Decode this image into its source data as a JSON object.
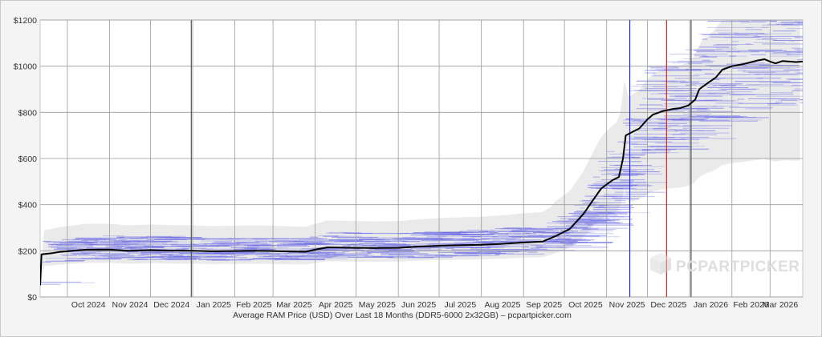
{
  "chart_data": {
    "type": "line",
    "xlabel": "Average RAM Price (USD) Over Last 18 Months (DDR5-6000 2x32GB) – pcpartpicker.com",
    "ylabel": "",
    "ylim": [
      0,
      1200
    ],
    "y_ticks": [
      0,
      200,
      400,
      600,
      800,
      1000,
      1200
    ],
    "y_tick_labels": [
      "$0",
      "$200",
      "$400",
      "$600",
      "$800",
      "$1000",
      "$1200"
    ],
    "x_ticks": [
      {
        "label": "Oct 2024",
        "date": "2024-10-01"
      },
      {
        "label": "Nov 2024",
        "date": "2024-11-01"
      },
      {
        "label": "Dec 2024",
        "date": "2024-12-01"
      },
      {
        "label": "Jan 2025",
        "date": "2025-01-01"
      },
      {
        "label": "Feb 2025",
        "date": "2025-02-01"
      },
      {
        "label": "Mar 2025",
        "date": "2025-03-01"
      },
      {
        "label": "Apr 2025",
        "date": "2025-04-01"
      },
      {
        "label": "May 2025",
        "date": "2025-05-01"
      },
      {
        "label": "Jun 2025",
        "date": "2025-06-01"
      },
      {
        "label": "Jul 2025",
        "date": "2025-07-01"
      },
      {
        "label": "Aug 2025",
        "date": "2025-08-01"
      },
      {
        "label": "Sep 2025",
        "date": "2025-09-01"
      },
      {
        "label": "Oct 2025",
        "date": "2025-10-01"
      },
      {
        "label": "Nov 2025",
        "date": "2025-11-01"
      },
      {
        "label": "Dec 2025",
        "date": "2025-12-01"
      },
      {
        "label": "Jan 2026",
        "date": "2026-01-01"
      },
      {
        "label": "Feb 2026",
        "date": "2026-02-01"
      },
      {
        "label": "Mar 2026",
        "date": "2026-03-01"
      }
    ],
    "xlim": [
      "2024-09-11",
      "2026-03-25"
    ],
    "grid": true,
    "series": [
      {
        "name": "",
        "color": "#000000",
        "points": [
          [
            "2024-09-11",
            50
          ],
          [
            "2024-09-12",
            185
          ],
          [
            "2024-09-20",
            190
          ],
          [
            "2024-09-25",
            195
          ],
          [
            "2024-10-05",
            200
          ],
          [
            "2024-10-15",
            205
          ],
          [
            "2024-11-01",
            205
          ],
          [
            "2024-11-15",
            200
          ],
          [
            "2024-12-01",
            203
          ],
          [
            "2024-12-15",
            201
          ],
          [
            "2025-01-01",
            200
          ],
          [
            "2025-01-15",
            198
          ],
          [
            "2025-02-01",
            199
          ],
          [
            "2025-02-15",
            200
          ],
          [
            "2025-03-01",
            199
          ],
          [
            "2025-03-15",
            197
          ],
          [
            "2025-03-25",
            196
          ],
          [
            "2025-04-01",
            205
          ],
          [
            "2025-04-10",
            215
          ],
          [
            "2025-05-01",
            213
          ],
          [
            "2025-05-15",
            212
          ],
          [
            "2025-06-01",
            213
          ],
          [
            "2025-06-15",
            218
          ],
          [
            "2025-07-01",
            222
          ],
          [
            "2025-07-15",
            224
          ],
          [
            "2025-08-01",
            226
          ],
          [
            "2025-08-15",
            230
          ],
          [
            "2025-09-01",
            236
          ],
          [
            "2025-09-15",
            240
          ],
          [
            "2025-09-25",
            265
          ],
          [
            "2025-10-05",
            295
          ],
          [
            "2025-10-15",
            360
          ],
          [
            "2025-10-22",
            420
          ],
          [
            "2025-10-28",
            470
          ],
          [
            "2025-11-05",
            505
          ],
          [
            "2025-11-10",
            520
          ],
          [
            "2025-11-13",
            600
          ],
          [
            "2025-11-15",
            700
          ],
          [
            "2025-11-20",
            715
          ],
          [
            "2025-11-25",
            730
          ],
          [
            "2025-12-01",
            770
          ],
          [
            "2025-12-05",
            790
          ],
          [
            "2025-12-12",
            805
          ],
          [
            "2025-12-20",
            815
          ],
          [
            "2025-12-25",
            818
          ],
          [
            "2025-12-31",
            830
          ],
          [
            "2026-01-05",
            855
          ],
          [
            "2026-01-08",
            900
          ],
          [
            "2026-01-15",
            930
          ],
          [
            "2026-01-20",
            950
          ],
          [
            "2026-01-25",
            985
          ],
          [
            "2026-02-01",
            1000
          ],
          [
            "2026-02-10",
            1010
          ],
          [
            "2026-02-20",
            1025
          ],
          [
            "2026-02-25",
            1030
          ],
          [
            "2026-03-01",
            1020
          ],
          [
            "2026-03-05",
            1012
          ],
          [
            "2026-03-10",
            1022
          ],
          [
            "2026-03-20",
            1018
          ],
          [
            "2026-03-25",
            1020
          ]
        ]
      }
    ],
    "vertical_markers": [
      {
        "date": "2024-12-31",
        "color": "#555555"
      },
      {
        "date": "2025-11-18",
        "color": "#2b2bd6"
      },
      {
        "date": "2025-12-15",
        "color": "#d62b2b"
      },
      {
        "date": "2026-01-02",
        "color": "#555555"
      }
    ],
    "background": {
      "band_color": "#e3e3e3",
      "listing_color": "#6a6ae6"
    },
    "watermark": "PCPARTPICKER"
  }
}
